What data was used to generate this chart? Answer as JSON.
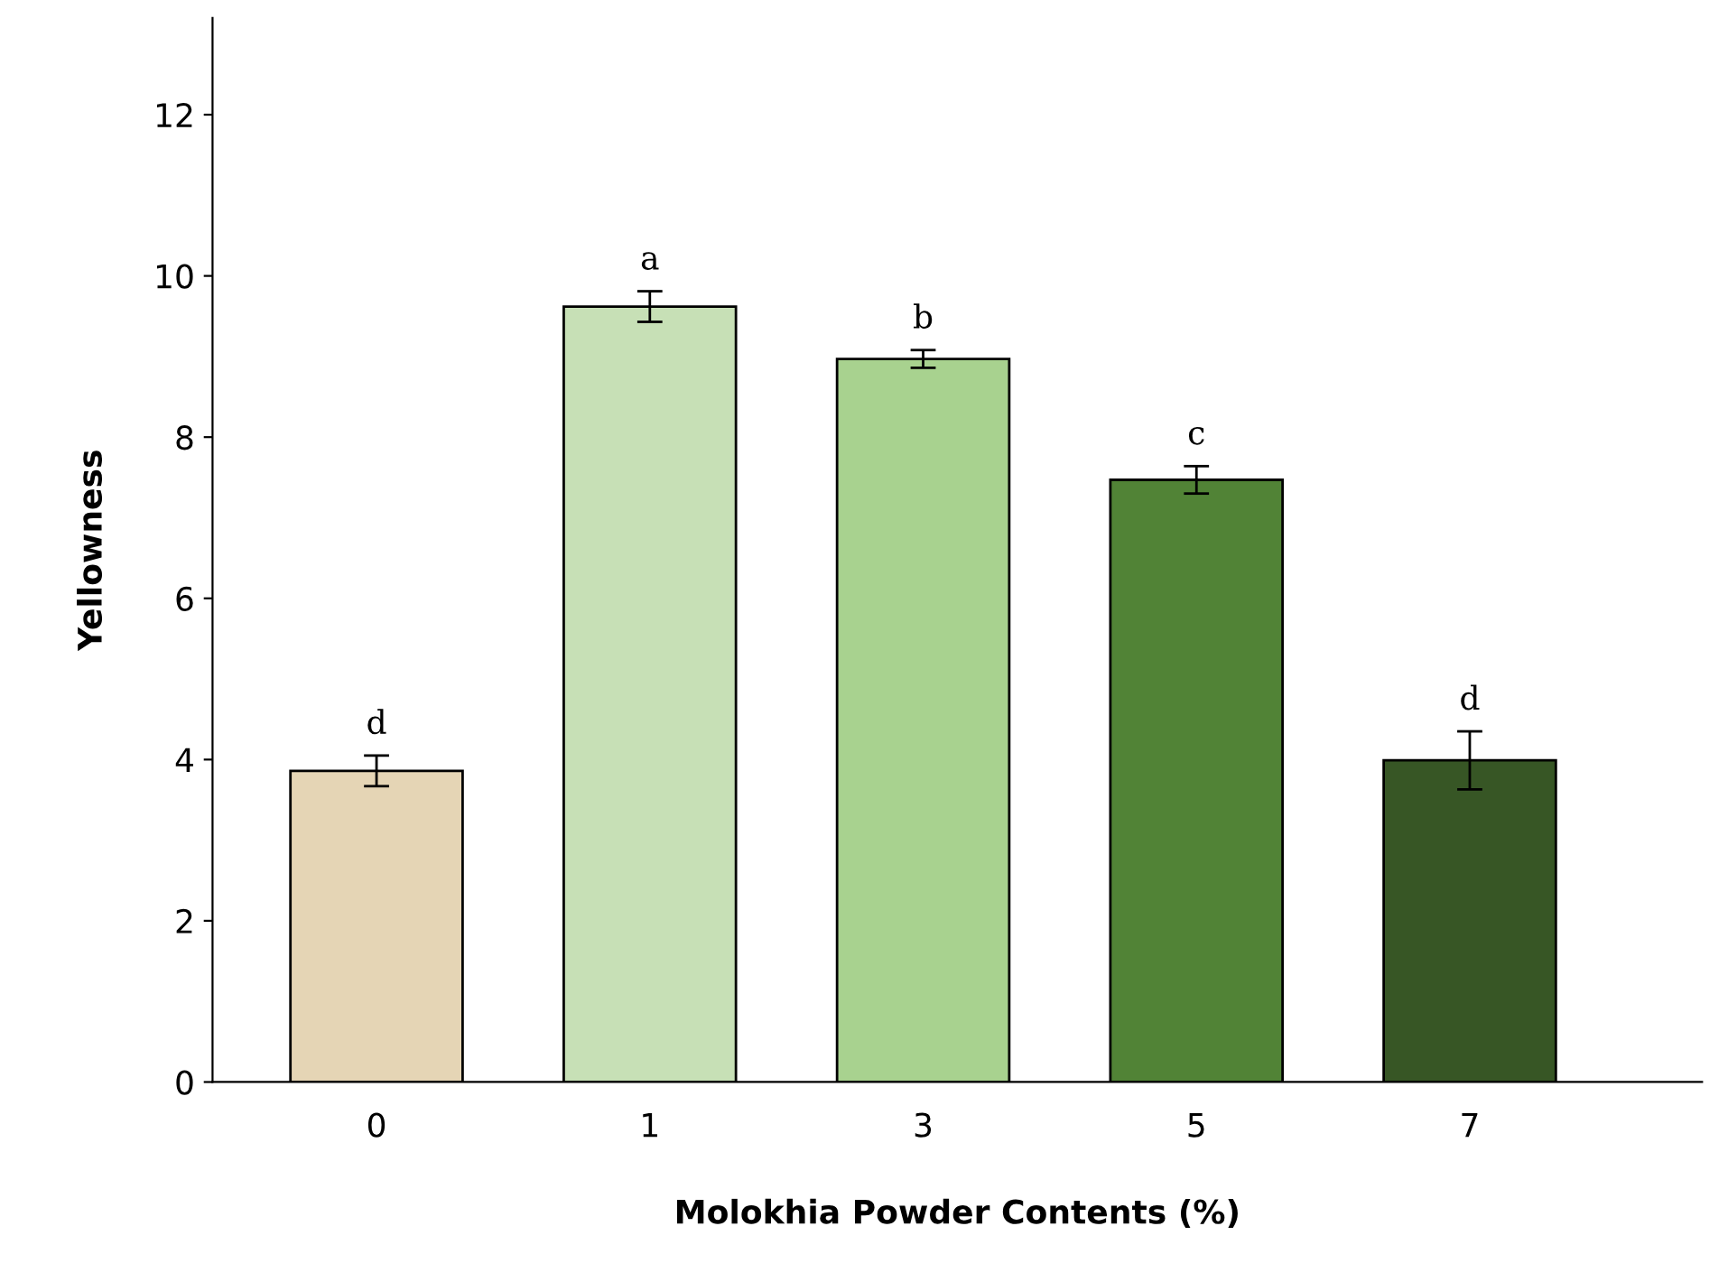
{
  "chart_data": {
    "type": "bar",
    "xlabel": "Molokhia Powder Contents (%)",
    "ylabel": "Yellowness",
    "categories": [
      "0",
      "1",
      "3",
      "5",
      "7"
    ],
    "values": [
      3.86,
      9.62,
      8.97,
      7.47,
      3.99
    ],
    "errors": [
      0.19,
      0.19,
      0.11,
      0.17,
      0.36
    ],
    "colors": [
      "#e5d5b5",
      "#c7e0b6",
      "#a8d28f",
      "#518336",
      "#375625"
    ],
    "ylim": [
      0,
      13.2
    ],
    "yticks": [
      0,
      2,
      4,
      6,
      8,
      10,
      12
    ],
    "grid": false,
    "legend": false,
    "annotations": [
      {
        "text": "d",
        "x": "0",
        "y": 4.05
      },
      {
        "text": "a",
        "x": "1",
        "y": 9.81
      },
      {
        "text": "b",
        "x": "3",
        "y": 9.08
      },
      {
        "text": "c",
        "x": "5",
        "y": 7.64
      },
      {
        "text": "d",
        "x": "7",
        "y": 4.35
      }
    ]
  }
}
